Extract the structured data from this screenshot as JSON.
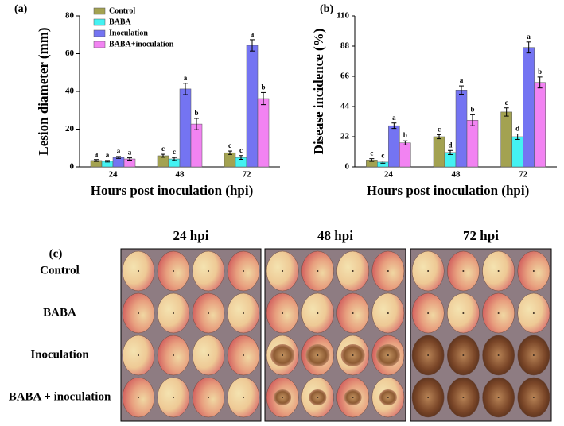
{
  "chart_data": [
    {
      "type": "bar",
      "panel_label": "(a)",
      "y_label": "Lesion diameter (mm)",
      "x_label": "Hours post inoculation (hpi)",
      "categories": [
        "24",
        "48",
        "72"
      ],
      "ylim": [
        0,
        80
      ],
      "yticks": [
        0,
        20,
        40,
        60,
        80
      ],
      "grid": false,
      "legend": "upper-left",
      "series": [
        {
          "name": "Control",
          "color": "#a3a251",
          "values": [
            3.4,
            5.9,
            7.5
          ],
          "errors": [
            0.5,
            0.8,
            0.9
          ],
          "letters": [
            "a",
            "c",
            "c"
          ]
        },
        {
          "name": "BABA",
          "color": "#44f2f2",
          "values": [
            3.0,
            4.2,
            5.0
          ],
          "errors": [
            0.4,
            0.8,
            1.0
          ],
          "letters": [
            "a",
            "c",
            "c"
          ]
        },
        {
          "name": "Inoculation",
          "color": "#7474f2",
          "values": [
            5.0,
            41.3,
            64.4
          ],
          "errors": [
            0.5,
            3.0,
            3.0
          ],
          "letters": [
            "a",
            "a",
            "a"
          ]
        },
        {
          "name": "BABA+inoculation",
          "color": "#f283f2",
          "values": [
            4.2,
            22.7,
            36.2
          ],
          "errors": [
            0.6,
            3.0,
            3.2
          ],
          "letters": [
            "a",
            "b",
            "b"
          ]
        }
      ]
    },
    {
      "type": "bar",
      "panel_label": "(b)",
      "y_label": "Disease incidence (%)",
      "x_label": "Hours post inoculation (hpi)",
      "categories": [
        "24",
        "48",
        "72"
      ],
      "ylim": [
        0,
        110
      ],
      "yticks": [
        0,
        22,
        44,
        66,
        88,
        110
      ],
      "grid": false,
      "series": [
        {
          "name": "Control",
          "color": "#a3a251",
          "values": [
            5,
            22,
            40
          ],
          "errors": [
            1,
            1.5,
            3
          ],
          "letters": [
            "c",
            "c",
            "c"
          ]
        },
        {
          "name": "BABA",
          "color": "#44f2f2",
          "values": [
            3.5,
            10.5,
            22
          ],
          "errors": [
            0.8,
            1.5,
            2
          ],
          "letters": [
            "c",
            "d",
            "d"
          ]
        },
        {
          "name": "Inoculation",
          "color": "#7474f2",
          "values": [
            30,
            56,
            87
          ],
          "errors": [
            2,
            3,
            4
          ],
          "letters": [
            "a",
            "a",
            "a"
          ]
        },
        {
          "name": "BABA+inoculation",
          "color": "#f283f2",
          "values": [
            17.5,
            34,
            61.5
          ],
          "errors": [
            1.5,
            4,
            4
          ],
          "letters": [
            "b",
            "b",
            "b"
          ]
        }
      ]
    }
  ],
  "photo_panel": {
    "panel_label": "(c)",
    "columns": [
      "24 hpi",
      "48  hpi",
      "72 hpi"
    ],
    "rows": [
      "Control",
      "BABA",
      "Inoculation",
      "BABA + inoculation"
    ]
  }
}
